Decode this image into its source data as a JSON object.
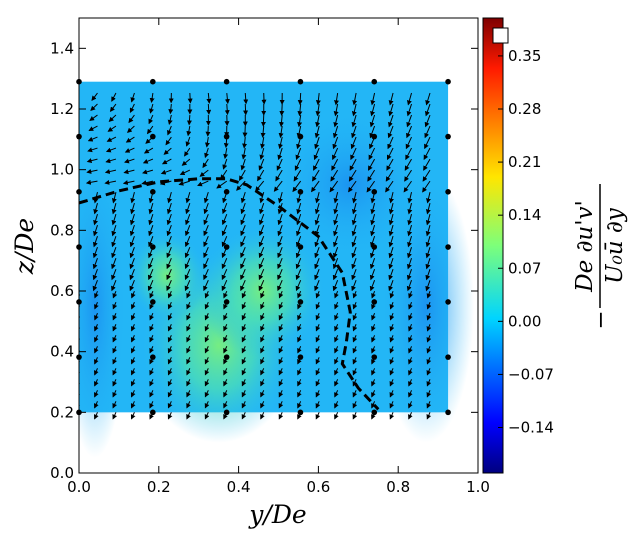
{
  "chart_data": {
    "type": "heatmap",
    "title": "",
    "xlabel": "y/De",
    "ylabel": "z/De",
    "xlim": [
      0.0,
      1.0
    ],
    "ylim": [
      0.0,
      1.5
    ],
    "xticks": [
      "0.0",
      "0.2",
      "0.4",
      "0.6",
      "0.8",
      "1.0"
    ],
    "yticks": [
      "0.0",
      "0.2",
      "0.4",
      "0.6",
      "0.8",
      "1.0",
      "1.2",
      "1.4"
    ],
    "field_extent": {
      "y": [
        0.0,
        0.925
      ],
      "z": [
        0.2,
        1.29
      ]
    },
    "colorbar": {
      "label_numerator": "De ∂u'v'",
      "label_denominator": "U₀ū ∂y",
      "range": [
        -0.2,
        0.4
      ],
      "ticks": [
        "−0.14",
        "−0.07",
        "0.00",
        "0.07",
        "0.14",
        "0.21",
        "0.28",
        "0.35"
      ],
      "tick_values": [
        -0.14,
        -0.07,
        0.0,
        0.07,
        0.14,
        0.21,
        0.28,
        0.35
      ]
    },
    "contour_dashed": {
      "y": [
        0.0,
        0.1,
        0.2,
        0.3,
        0.37,
        0.42,
        0.5,
        0.6,
        0.66,
        0.68,
        0.67,
        0.66,
        0.7,
        0.75
      ],
      "z": [
        0.89,
        0.93,
        0.96,
        0.97,
        0.97,
        0.95,
        0.88,
        0.78,
        0.66,
        0.53,
        0.43,
        0.36,
        0.28,
        0.21
      ]
    },
    "measurement_points": {
      "y": [
        0.0,
        0.185,
        0.37,
        0.555,
        0.74,
        0.925
      ],
      "z": [
        0.2,
        0.382,
        0.564,
        0.745,
        0.927,
        1.109,
        1.29
      ]
    },
    "colors": {
      "field_base": "#23b6f6",
      "field_cool": "#1e9cf2",
      "field_warm": "#5ee8a8",
      "contour": "#000000",
      "points": "#000000",
      "arrows": "#000000"
    }
  }
}
